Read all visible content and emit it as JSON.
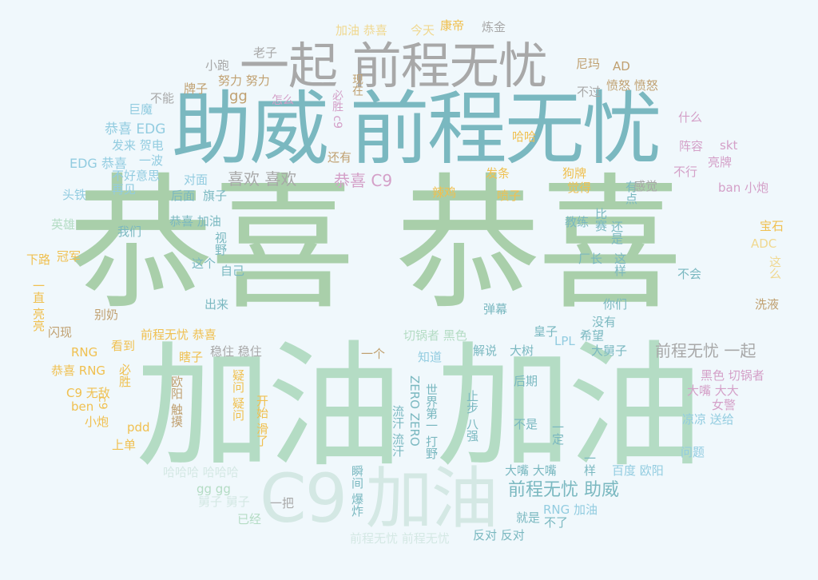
{
  "words": [
    {
      "text": "恭喜 恭喜",
      "color": "#a9cfaa"
    },
    {
      "text": "加油 加油",
      "color": "#b4dcc4"
    },
    {
      "text": "助威 前程无忧",
      "color": "#7ab8c0"
    },
    {
      "text": "一起 前程无忧",
      "color": "#a8a8a8"
    },
    {
      "text": "C9 加油",
      "color": "#d4e8e4"
    },
    {
      "text": "前程无忧 助威",
      "color": "#7ab8c0"
    },
    {
      "text": "前程无忧 一起",
      "color": "#a8a8a8"
    },
    {
      "text": "喜欢 喜欢",
      "color": "#a8a8a8"
    },
    {
      "text": "恭喜 C9",
      "color": "#d4a0c8"
    },
    {
      "text": "恭喜 EDG",
      "color": "#92cce0"
    },
    {
      "text": "EDG 恭喜",
      "color": "#92cce0"
    },
    {
      "text": "加油 恭喜",
      "color": "#f0d890"
    },
    {
      "text": "今天",
      "color": "#f0d890"
    },
    {
      "text": "康帝",
      "color": "#f0c050"
    },
    {
      "text": "炼金",
      "color": "#a8a8a8"
    },
    {
      "text": "老子",
      "color": "#a8a8a8"
    },
    {
      "text": "小跑",
      "color": "#a8a8a8"
    },
    {
      "text": "努力 努力",
      "color": "#c0a070"
    },
    {
      "text": "尼玛",
      "color": "#c0a070"
    },
    {
      "text": "AD",
      "color": "#c0a070"
    },
    {
      "text": "不过",
      "color": "#a8a8a8"
    },
    {
      "text": "愤怒 愤怒",
      "color": "#c0a070"
    },
    {
      "text": "牌子",
      "color": "#c0a070"
    },
    {
      "text": "gg",
      "color": "#c0a070"
    },
    {
      "text": "不能",
      "color": "#a8a8a8"
    },
    {
      "text": "怎么",
      "color": "#d4a0c8"
    },
    {
      "text": "巨魔",
      "color": "#92cce0"
    },
    {
      "text": "发来 贺电",
      "color": "#92cce0"
    },
    {
      "text": "一波",
      "color": "#92cce0"
    },
    {
      "text": "不好意思",
      "color": "#92cce0"
    },
    {
      "text": "再见",
      "color": "#92cce0"
    },
    {
      "text": "对面",
      "color": "#92cce0"
    },
    {
      "text": "后面",
      "color": "#7ab8c0"
    },
    {
      "text": "旗子",
      "color": "#7ab8c0"
    },
    {
      "text": "头铁",
      "color": "#92cce0"
    },
    {
      "text": "英雄",
      "color": "#b4dcc4"
    },
    {
      "text": "我们",
      "color": "#7ab8c0"
    },
    {
      "text": "恭喜 加油",
      "color": "#7ab8c0"
    },
    {
      "text": "视野",
      "color": "#7ab8c0"
    },
    {
      "text": "下路",
      "color": "#f0c050"
    },
    {
      "text": "冠军",
      "color": "#f0c050"
    },
    {
      "text": "这个",
      "color": "#7ab8c0"
    },
    {
      "text": "自己",
      "color": "#7ab8c0"
    },
    {
      "text": "出来",
      "color": "#7ab8c0"
    },
    {
      "text": "别奶",
      "color": "#c0a070"
    },
    {
      "text": "一直 亮亮",
      "color": "#f0c050"
    },
    {
      "text": "闪现",
      "color": "#c0a070"
    },
    {
      "text": "前程无忧 恭喜",
      "color": "#f0c050"
    },
    {
      "text": "RNG",
      "color": "#f0c050"
    },
    {
      "text": "看到",
      "color": "#f0c050"
    },
    {
      "text": "恭喜 RNG",
      "color": "#f0c050"
    },
    {
      "text": "必胜",
      "color": "#f0c050"
    },
    {
      "text": "C9 无敌",
      "color": "#f0c050"
    },
    {
      "text": "c9",
      "color": "#f0c050"
    },
    {
      "text": "ben",
      "color": "#f0c050"
    },
    {
      "text": "小炮",
      "color": "#f0c050"
    },
    {
      "text": "pdd",
      "color": "#f0c050"
    },
    {
      "text": "上单",
      "color": "#f0c050"
    },
    {
      "text": "瞎子",
      "color": "#f0c050"
    },
    {
      "text": "稳住 稳住",
      "color": "#a8a8a8"
    },
    {
      "text": "欧阳 触摸",
      "color": "#c0a070"
    },
    {
      "text": "疑问 疑问",
      "color": "#f0c050"
    },
    {
      "text": "开始 滑了",
      "color": "#f0c050"
    },
    {
      "text": "哈哈哈 哈哈哈",
      "color": "#d4e8e4"
    },
    {
      "text": "gg gg",
      "color": "#b4dcc4"
    },
    {
      "text": "舅子 舅子",
      "color": "#d4e8e4"
    },
    {
      "text": "一把",
      "color": "#a8a8a8"
    },
    {
      "text": "已经",
      "color": "#b4dcc4"
    },
    {
      "text": "瞬间 爆炸",
      "color": "#7ab8c0"
    },
    {
      "text": "前程无忧 前程无忧",
      "color": "#d4e8e4"
    },
    {
      "text": "反对 反对",
      "color": "#7ab8c0"
    },
    {
      "text": "就是",
      "color": "#7ab8c0"
    },
    {
      "text": "不了",
      "color": "#7ab8c0"
    },
    {
      "text": "RNG 加油",
      "color": "#92cce0"
    },
    {
      "text": "大嘴 大嘴",
      "color": "#7ab8c0"
    },
    {
      "text": "一样",
      "color": "#7ab8c0"
    },
    {
      "text": "百度 欧阳",
      "color": "#92cce0"
    },
    {
      "text": "问题",
      "color": "#92cce0"
    },
    {
      "text": "凉凉 送给",
      "color": "#92cce0"
    },
    {
      "text": "大嘴 大大",
      "color": "#d4a0c8"
    },
    {
      "text": "女警",
      "color": "#d4a0c8"
    },
    {
      "text": "黑色 切锅者",
      "color": "#d4a0c8"
    },
    {
      "text": "一定",
      "color": "#7ab8c0"
    },
    {
      "text": "不是",
      "color": "#7ab8c0"
    },
    {
      "text": "后期",
      "color": "#7ab8c0"
    },
    {
      "text": "止步 八强",
      "color": "#7ab8c0"
    },
    {
      "text": "世界第一 打野",
      "color": "#7ab8c0"
    },
    {
      "text": "ZERO ZERO",
      "color": "#7ab8c0"
    },
    {
      "text": "流汗 流汗",
      "color": "#7ab8c0"
    },
    {
      "text": "知道",
      "color": "#92cce0"
    },
    {
      "text": "一个",
      "color": "#c0a070"
    },
    {
      "text": "解说",
      "color": "#7ab8c0"
    },
    {
      "text": "大树",
      "color": "#7ab8c0"
    },
    {
      "text": "皇子",
      "color": "#7ab8c0"
    },
    {
      "text": "LPL",
      "color": "#92cce0"
    },
    {
      "text": "希望",
      "color": "#7ab8c0"
    },
    {
      "text": "大舅子",
      "color": "#7ab8c0"
    },
    {
      "text": "没有",
      "color": "#7ab8c0"
    },
    {
      "text": "你们",
      "color": "#7ab8c0"
    },
    {
      "text": "弹幕",
      "color": "#7ab8c0"
    },
    {
      "text": "切锅者 黑色",
      "color": "#b4dcc4"
    },
    {
      "text": "厂长",
      "color": "#7ab8c0"
    },
    {
      "text": "这样",
      "color": "#7ab8c0"
    },
    {
      "text": "不会",
      "color": "#7ab8c0"
    },
    {
      "text": "洗液",
      "color": "#c0a070"
    },
    {
      "text": "比赛",
      "color": "#7ab8c0"
    },
    {
      "text": "还是",
      "color": "#7ab8c0"
    },
    {
      "text": "有点",
      "color": "#7ab8c0"
    },
    {
      "text": "教练",
      "color": "#7ab8c0"
    },
    {
      "text": "觉得",
      "color": "#f0c050"
    },
    {
      "text": "狗牌",
      "color": "#f0c050"
    },
    {
      "text": "感觉",
      "color": "#a8a8a8"
    },
    {
      "text": "ban 小炮",
      "color": "#d4a0c8"
    },
    {
      "text": "宝石",
      "color": "#f0c050"
    },
    {
      "text": "ADC",
      "color": "#f0d890"
    },
    {
      "text": "这么",
      "color": "#f0d890"
    },
    {
      "text": "阵容",
      "color": "#d4a0c8"
    },
    {
      "text": "skt",
      "color": "#d4a0c8"
    },
    {
      "text": "亮牌",
      "color": "#d4a0c8"
    },
    {
      "text": "不行",
      "color": "#d4a0c8"
    },
    {
      "text": "什么",
      "color": "#d4a0c8"
    },
    {
      "text": "哈哈",
      "color": "#f0c050"
    },
    {
      "text": "发条",
      "color": "#f0c050"
    },
    {
      "text": "喷子",
      "color": "#f0c050"
    },
    {
      "text": "辣鸡",
      "color": "#f0c050"
    },
    {
      "text": "还有",
      "color": "#c0a070"
    },
    {
      "text": "必胜 c9",
      "color": "#d4a0c8"
    },
    {
      "text": "现在",
      "color": "#c0a070"
    }
  ]
}
